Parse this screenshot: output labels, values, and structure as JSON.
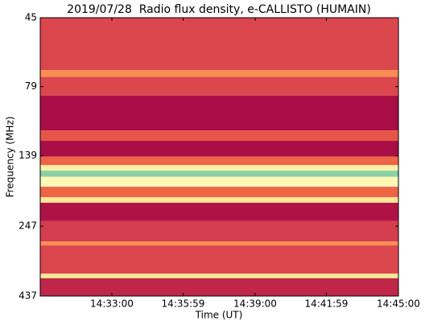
{
  "chart_data": {
    "type": "heatmap",
    "title": "2019/07/28  Radio flux density, e-CALLISTO (HUMAIN)",
    "xlabel": "Time (UT)",
    "ylabel": "Frequency (MHz)",
    "xlim": [
      52200,
      53100
    ],
    "xticks": [
      {
        "value": 52380,
        "label": "14:33:00"
      },
      {
        "value": 52559,
        "label": "14:35:59"
      },
      {
        "value": 52740,
        "label": "14:39:00"
      },
      {
        "value": 52919,
        "label": "14:41:59"
      },
      {
        "value": 53100,
        "label": "14:45:00"
      }
    ],
    "ylim": [
      45,
      437
    ],
    "yticks": [
      45,
      79,
      139,
      247,
      437
    ],
    "ylog": true,
    "yinverted": true,
    "colormap": "Spectral",
    "y_edges": [
      45,
      69,
      73,
      85,
      113,
      123,
      140,
      150,
      157,
      165,
      179,
      195,
      204,
      237,
      280,
      289,
      364,
      378,
      437
    ],
    "values": [
      0.12,
      0.25,
      0.12,
      0.02,
      0.15,
      0.02,
      0.18,
      0.45,
      0.75,
      0.48,
      0.18,
      0.42,
      0.03,
      0.1,
      0.25,
      0.12,
      0.42,
      0.06
    ]
  }
}
